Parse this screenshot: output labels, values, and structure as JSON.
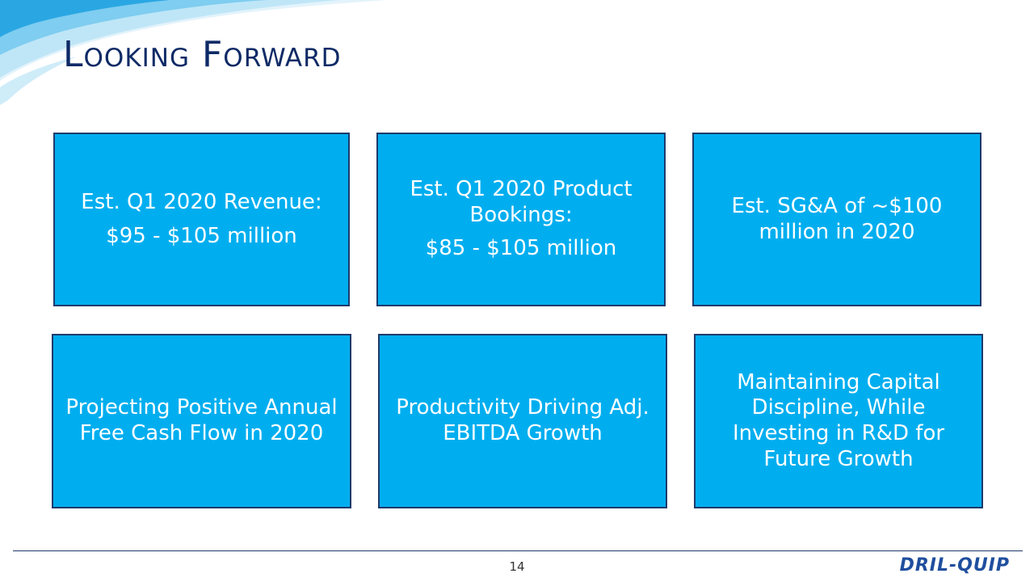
{
  "slide": {
    "title": "Looking Forward",
    "page_number": "14",
    "logo_text": "DRIL-QUIP"
  },
  "boxes": {
    "q1_revenue": {
      "label": "Est. Q1 2020 Revenue:",
      "value": "$95 - $105 million"
    },
    "q1_bookings": {
      "label": "Est. Q1 2020 Product Bookings:",
      "value": "$85 - $105 million"
    },
    "sga": {
      "text": "Est. SG&A of ~$100 million in 2020"
    },
    "free_cash_flow": {
      "text": "Projecting Positive Annual Free Cash Flow in 2020"
    },
    "ebitda": {
      "text": "Productivity Driving Adj. EBITDA Growth"
    },
    "capital": {
      "text": "Maintaining Capital Discipline, While Investing in R&D for Future Growth"
    }
  },
  "colors": {
    "box_fill": "#00aeef",
    "box_border": "#1f3a6b",
    "title": "#0e2a66",
    "logo": "#1f4e9e"
  }
}
